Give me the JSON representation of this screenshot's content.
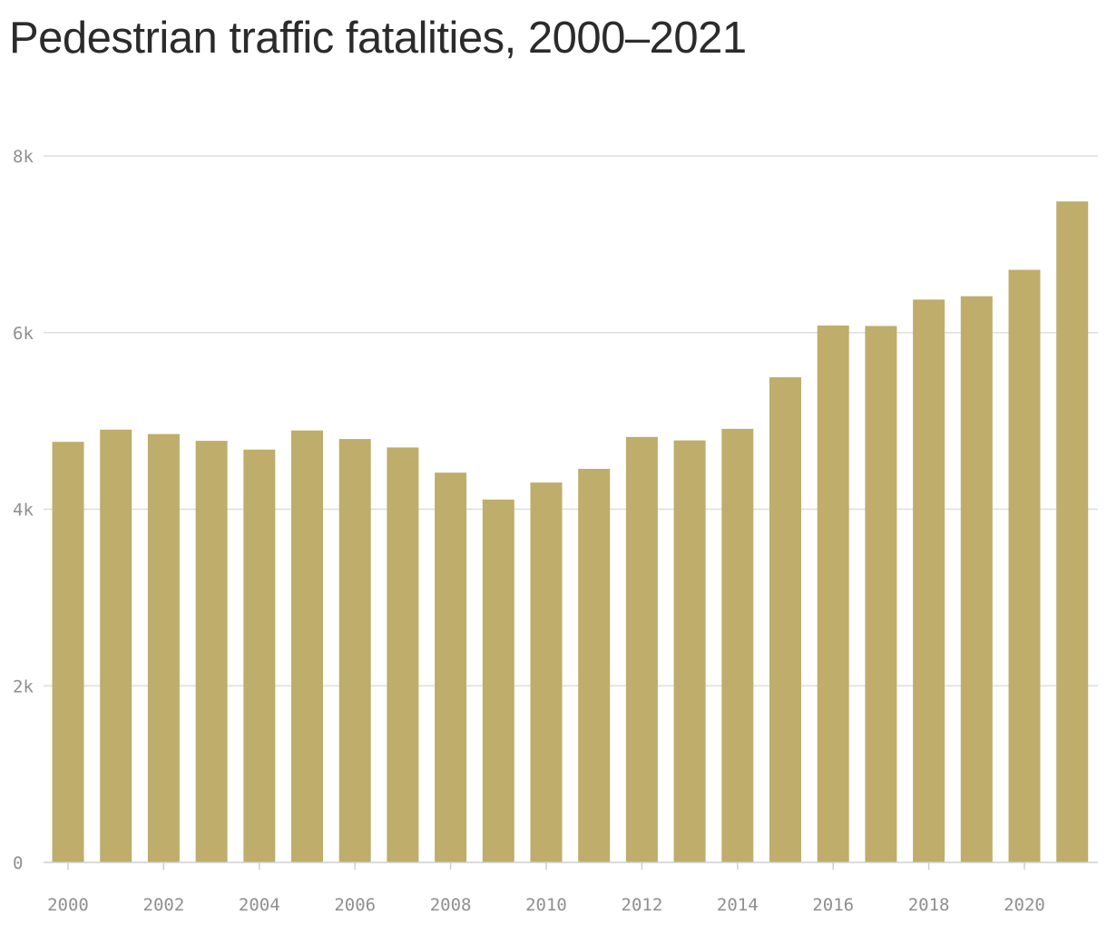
{
  "chart_data": {
    "type": "bar",
    "title": "Pedestrian traffic fatalities, 2000–2021",
    "xlabel": "",
    "ylabel": "",
    "categories": [
      "2000",
      "2001",
      "2002",
      "2003",
      "2004",
      "2005",
      "2006",
      "2007",
      "2008",
      "2009",
      "2010",
      "2011",
      "2012",
      "2013",
      "2014",
      "2015",
      "2016",
      "2017",
      "2018",
      "2019",
      "2020",
      "2021"
    ],
    "values": [
      4763,
      4901,
      4851,
      4774,
      4675,
      4892,
      4795,
      4699,
      4414,
      4109,
      4302,
      4457,
      4818,
      4779,
      4910,
      5494,
      6080,
      6075,
      6374,
      6412,
      6711,
      7485
    ],
    "ylim": [
      0,
      8000
    ],
    "y_ticks": [
      {
        "value": 0,
        "label": "0"
      },
      {
        "value": 2000,
        "label": "2k"
      },
      {
        "value": 4000,
        "label": "4k"
      },
      {
        "value": 6000,
        "label": "6k"
      },
      {
        "value": 8000,
        "label": "8k"
      }
    ],
    "x_tick_labels": [
      "2000",
      "2002",
      "2004",
      "2006",
      "2008",
      "2010",
      "2012",
      "2014",
      "2016",
      "2018",
      "2020"
    ],
    "grid": true,
    "legend": "none",
    "bar_color": "#bead6b"
  }
}
